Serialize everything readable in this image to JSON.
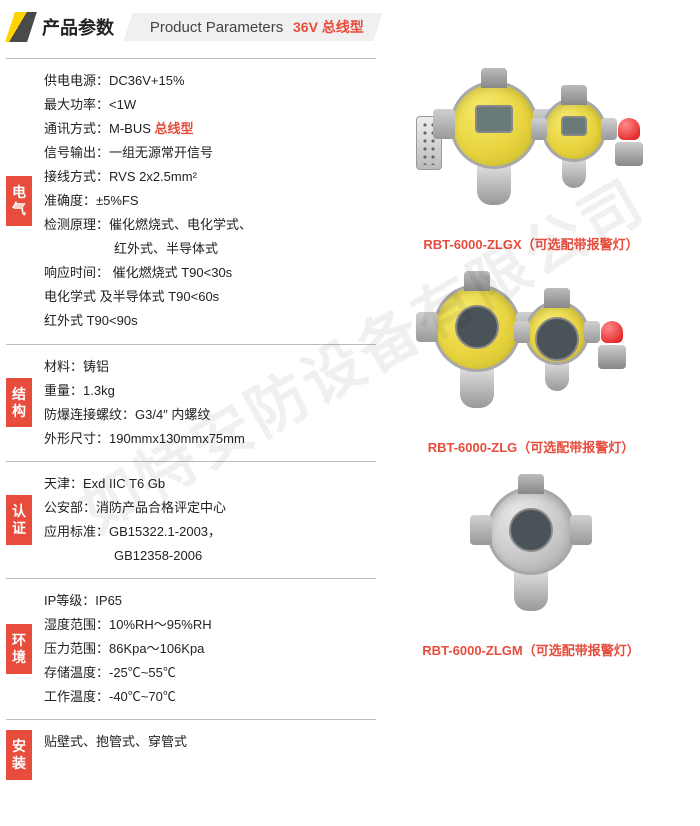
{
  "header": {
    "title_cn": "产品参数",
    "title_en": "Product Parameters",
    "tag": "36V 总线型",
    "colors": {
      "accent": "#e74c3c",
      "stripe_yellow": "#ffd400",
      "stripe_dark": "#4a4a4a"
    }
  },
  "sections": [
    {
      "badge": "电气",
      "rows": [
        {
          "text": "供电电源：DC36V+15%"
        },
        {
          "text": "最大功率：<1W"
        },
        {
          "text": "通讯方式：M-BUS ",
          "hl": "总线型"
        },
        {
          "text": "信号输出：一组无源常开信号"
        },
        {
          "text": "接线方式：RVS 2x2.5mm²"
        },
        {
          "text": "准确度：±5%FS"
        },
        {
          "text": "检测原理：催化燃烧式、电化学式、"
        },
        {
          "text": "红外式、半导体式",
          "indent": true
        },
        {
          "text": "响应时间： 催化燃烧式 T90<30s"
        },
        {
          "text": "电化学式 及半导体式  T90<60s"
        },
        {
          "text": "红外式  T90<90s"
        }
      ]
    },
    {
      "badge": "结构",
      "rows": [
        {
          "text": "材料：铸铝"
        },
        {
          "text": "重量：1.3kg"
        },
        {
          "text": "防爆连接螺纹：G3/4″ 内螺纹"
        },
        {
          "text": "外形尺寸：190mmx130mmx75mm"
        }
      ]
    },
    {
      "badge": "认证",
      "rows": [
        {
          "text": "天津：Exd IIC T6 Gb"
        },
        {
          "text": "公安部：消防产品合格评定中心"
        },
        {
          "text": "应用标准：GB15322.1-2003，"
        },
        {
          "text": "GB12358-2006",
          "indent": true
        }
      ]
    },
    {
      "badge": "环境",
      "rows": [
        {
          "text": "IP等级：IP65"
        },
        {
          "text": "湿度范围：10%RH～95%RH"
        },
        {
          "text": "压力范围：86Kpa～106Kpa"
        },
        {
          "text": "存储温度：-25℃~55℃"
        },
        {
          "text": "工作温度：-40℃~70℃"
        }
      ]
    },
    {
      "badge": "安装",
      "rows": [
        {
          "text": "贴壁式、抱管式、穿管式"
        }
      ]
    }
  ],
  "products": [
    {
      "caption": "RBT-6000-ZLGX（可选配带报警灯）",
      "variant": "screen",
      "remote": true
    },
    {
      "caption": "RBT-6000-ZLG（可选配带报警灯）",
      "variant": "face",
      "remote": false
    },
    {
      "caption": "RBT-6000-ZLGM（可选配带报警灯）",
      "variant": "gray",
      "remote": false,
      "single": true
    }
  ],
  "watermark": "如特安防设备有限公司"
}
